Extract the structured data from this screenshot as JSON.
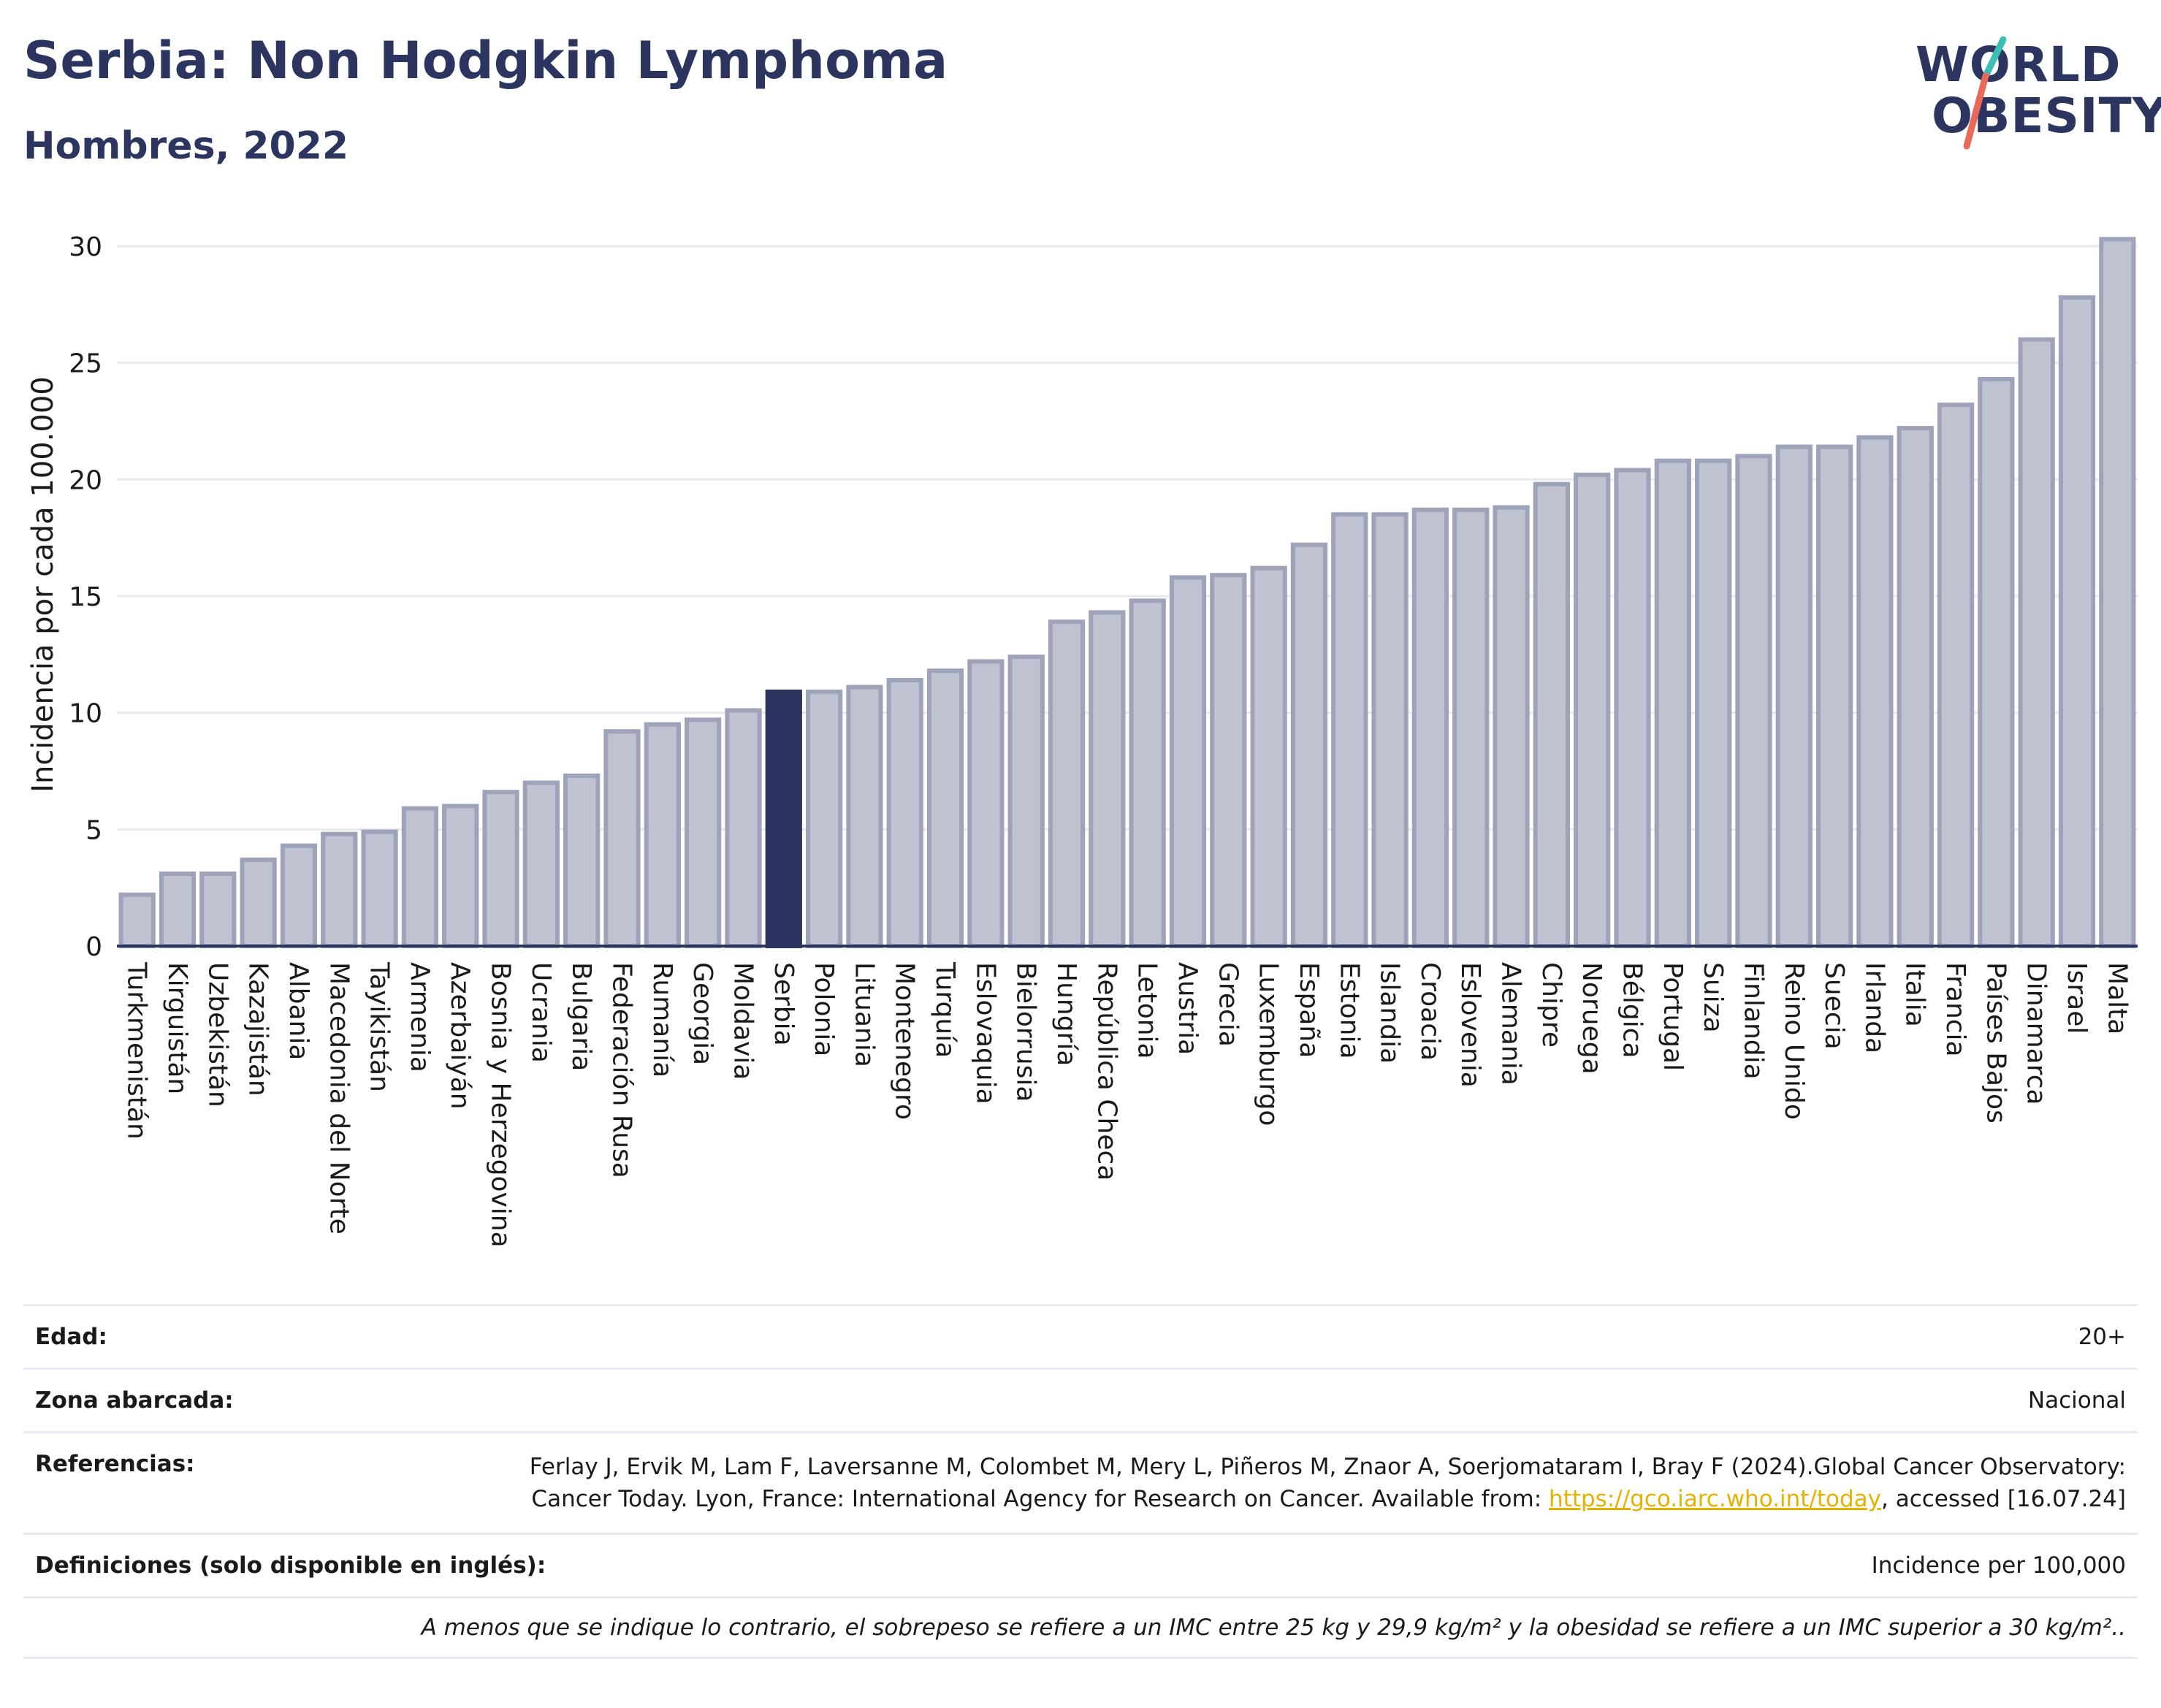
{
  "header": {
    "title": "Serbia: Non Hodgkin Lymphoma",
    "subtitle": "Hombres, 2022"
  },
  "logo": {
    "line1": "WORLD",
    "line2": "OBESITY"
  },
  "colors": {
    "bar_default": "#bfc3d1",
    "bar_default_stroke": "#9ea3b9",
    "bar_highlight": "#2b3560",
    "grid": "#e6e9f0",
    "axis": "#2b3560",
    "logo_teal": "#3dbfb5",
    "logo_coral": "#e8685a"
  },
  "chart_data": {
    "type": "bar",
    "ylabel": "Incidencia por cada 100.000",
    "xlabel": "",
    "ylim": [
      0,
      31
    ],
    "yticks": [
      0,
      5,
      10,
      15,
      20,
      25,
      30
    ],
    "grid": true,
    "highlight": "Serbia",
    "categories": [
      "Turkmenistán",
      "Kirguistán",
      "Uzbekistán",
      "Kazajistán",
      "Albania",
      "Macedonia del Norte",
      "Tayikistán",
      "Armenia",
      "Azerbaiyán",
      "Bosnia y Herzegovina",
      "Ucrania",
      "Bulgaria",
      "Federación Rusa",
      "Rumanía",
      "Georgia",
      "Moldavia",
      "Serbia",
      "Polonia",
      "Lituania",
      "Montenegro",
      "Turquía",
      "Eslovaquia",
      "Bielorrusia",
      "Hungría",
      "República Checa",
      "Letonia",
      "Austria",
      "Grecia",
      "Luxemburgo",
      "España",
      "Estonia",
      "Islandia",
      "Croacia",
      "Eslovenia",
      "Alemania",
      "Chipre",
      "Noruega",
      "Bélgica",
      "Portugal",
      "Suiza",
      "Finlandia",
      "Reino Unido",
      "Suecia",
      "Irlanda",
      "Italia",
      "Francia",
      "Países Bajos",
      "Dinamarca",
      "Israel",
      "Malta"
    ],
    "values": [
      2.2,
      3.1,
      3.1,
      3.7,
      4.3,
      4.8,
      4.9,
      5.9,
      6.0,
      6.6,
      7.0,
      7.3,
      9.2,
      9.5,
      9.7,
      10.1,
      10.9,
      10.9,
      11.1,
      11.4,
      11.8,
      12.2,
      12.4,
      13.9,
      14.3,
      14.8,
      15.8,
      15.9,
      16.2,
      17.2,
      18.5,
      18.5,
      18.7,
      18.7,
      18.8,
      19.8,
      20.2,
      20.4,
      20.8,
      20.8,
      21.0,
      21.4,
      21.4,
      21.8,
      22.2,
      23.2,
      24.3,
      26.0,
      27.8,
      30.3
    ]
  },
  "info": {
    "age_label": "Edad:",
    "age_value": "20+",
    "zone_label": "Zona abarcada:",
    "zone_value": "Nacional",
    "ref_label": "Referencias:",
    "ref_text_1": "Ferlay J, Ervik M, Lam F, Laversanne M, Colombet M, Mery L, Piñeros M, Znaor A, Soerjomataram I, Bray F (2024).Global Cancer Observatory: Cancer Today. Lyon, France: International Agency for Research on Cancer. Available from: ",
    "ref_link": "https://gco.iarc.who.int/today",
    "ref_text_2": ", accessed [16.07.24]",
    "def_label": "Definiciones (solo disponible en inglés):",
    "def_value": "Incidence per 100,000",
    "note": "A menos que se indique lo contrario, el sobrepeso se refiere a un IMC entre 25 kg y 29,9 kg/m² y la obesidad se refiere a un IMC superior a 30 kg/m².."
  }
}
